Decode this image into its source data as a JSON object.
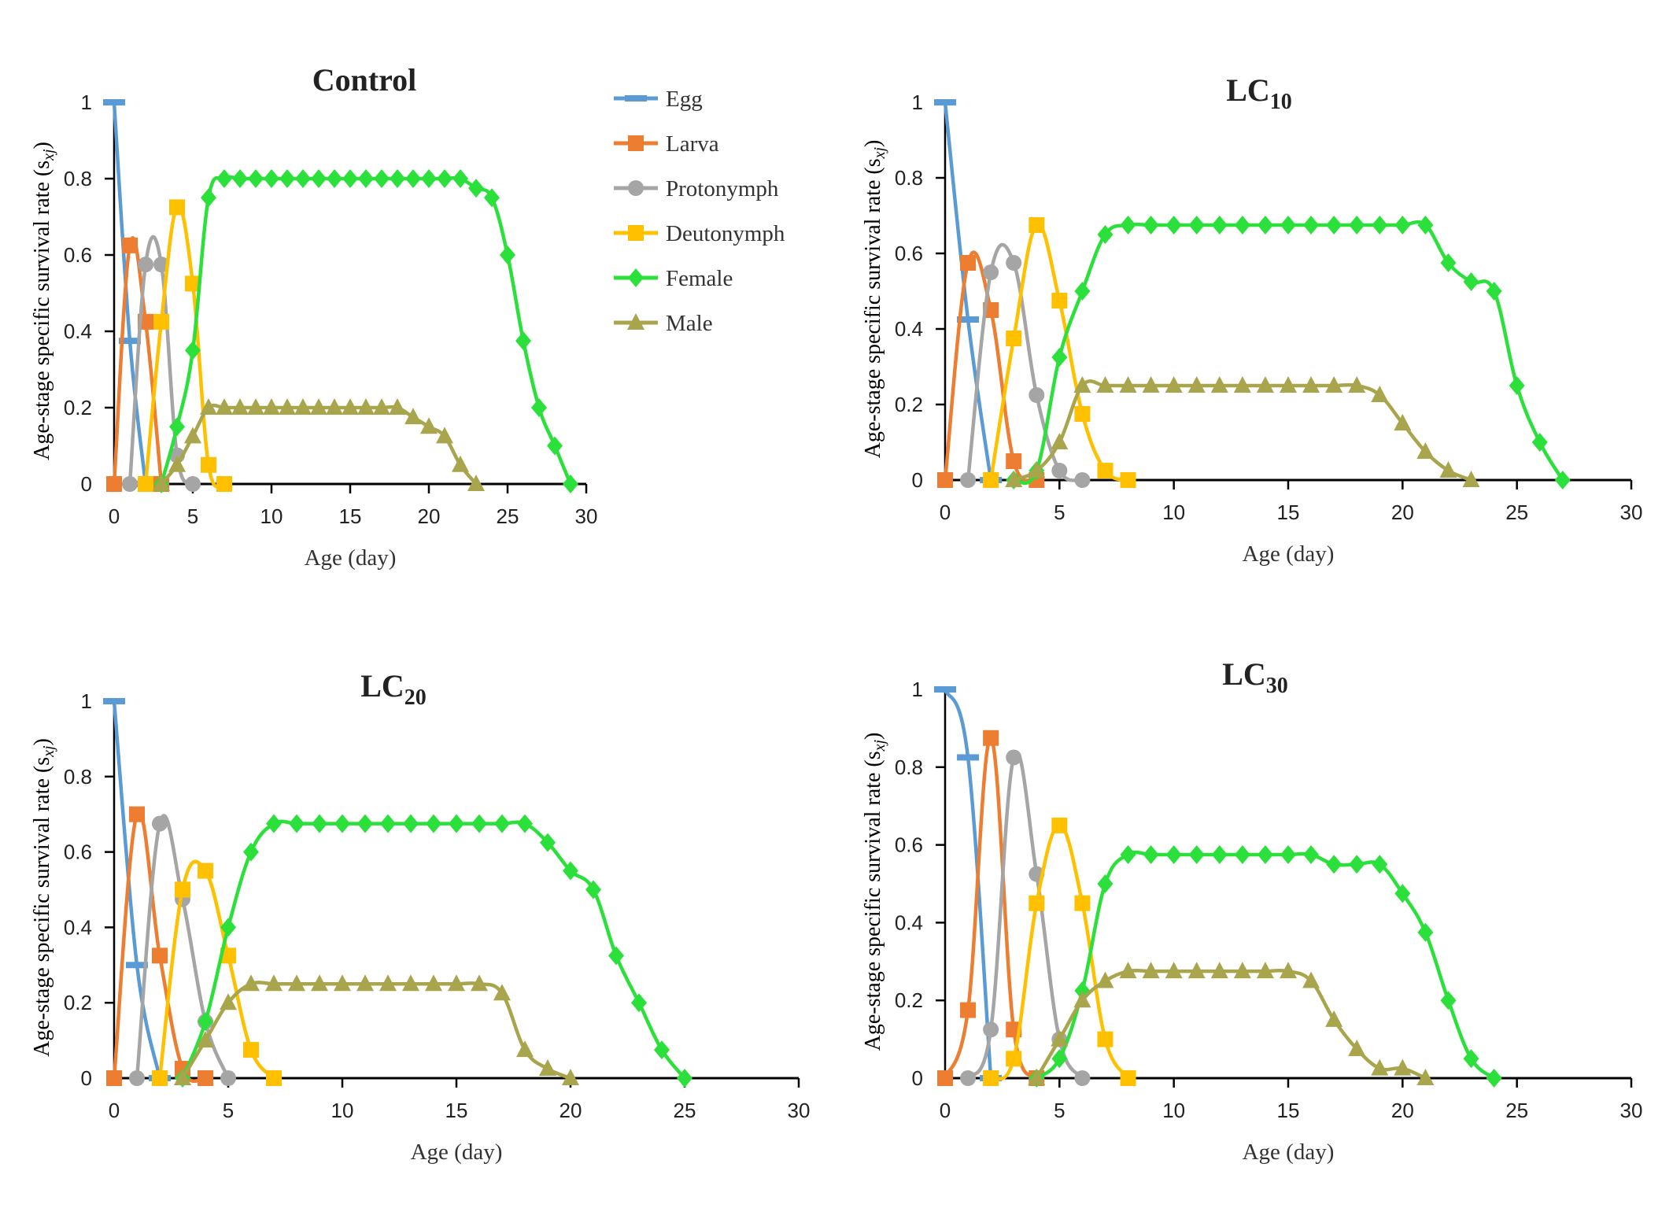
{
  "chart_data": [
    {
      "type": "line",
      "title": "Control",
      "title_sub": "",
      "xlabel": "Age (day)",
      "ylabel": "Age-stage specific survival rate (s",
      "ylabel_sub": "xj",
      "ylabel_end": ")",
      "xlim": [
        0,
        30
      ],
      "ylim": [
        0,
        1
      ],
      "xticks": [
        "0",
        "5",
        "10",
        "15",
        "20",
        "25",
        "30"
      ],
      "yticks": [
        "0",
        "0.2",
        "0.4",
        "0.6",
        "0.8",
        "1"
      ],
      "grid": false,
      "series": [
        {
          "name": "Egg",
          "x": [
            0,
            1,
            2
          ],
          "values": [
            1,
            0.375,
            0
          ]
        },
        {
          "name": "Larva",
          "x": [
            0,
            1,
            2,
            3
          ],
          "values": [
            0,
            0.625,
            0.425,
            0
          ]
        },
        {
          "name": "Protonymph",
          "x": [
            1,
            2,
            3,
            4,
            5
          ],
          "values": [
            0,
            0.575,
            0.575,
            0.075,
            0
          ]
        },
        {
          "name": "Deutonymph",
          "x": [
            2,
            3,
            4,
            5,
            6,
            7
          ],
          "values": [
            0,
            0.425,
            0.725,
            0.525,
            0.05,
            0
          ]
        },
        {
          "name": "Female",
          "x": [
            3,
            4,
            5,
            6,
            7,
            8,
            9,
            10,
            11,
            12,
            13,
            14,
            15,
            16,
            17,
            18,
            19,
            20,
            21,
            22,
            23,
            24,
            25,
            26,
            27,
            28,
            29
          ],
          "values": [
            0,
            0.15,
            0.35,
            0.75,
            0.8,
            0.8,
            0.8,
            0.8,
            0.8,
            0.8,
            0.8,
            0.8,
            0.8,
            0.8,
            0.8,
            0.8,
            0.8,
            0.8,
            0.8,
            0.8,
            0.775,
            0.75,
            0.6,
            0.375,
            0.2,
            0.1,
            0
          ]
        },
        {
          "name": "Male",
          "x": [
            3,
            4,
            5,
            6,
            7,
            8,
            9,
            10,
            11,
            12,
            13,
            14,
            15,
            16,
            17,
            18,
            19,
            20,
            21,
            22,
            23
          ],
          "values": [
            0,
            0.05,
            0.125,
            0.2,
            0.2,
            0.2,
            0.2,
            0.2,
            0.2,
            0.2,
            0.2,
            0.2,
            0.2,
            0.2,
            0.2,
            0.2,
            0.175,
            0.15,
            0.125,
            0.05,
            0
          ]
        }
      ]
    },
    {
      "type": "line",
      "title": "LC",
      "title_sub": "10",
      "xlabel": "Age (day)",
      "ylabel": "Age-stage specific survival rate (s",
      "ylabel_sub": "xj",
      "ylabel_end": ")",
      "xlim": [
        0,
        30
      ],
      "ylim": [
        0,
        1
      ],
      "xticks": [
        "0",
        "5",
        "10",
        "15",
        "20",
        "25",
        "30"
      ],
      "yticks": [
        "0",
        "0.2",
        "0.4",
        "0.6",
        "0.8",
        "1"
      ],
      "grid": false,
      "series": [
        {
          "name": "Egg",
          "x": [
            0,
            1,
            2
          ],
          "values": [
            1,
            0.425,
            0
          ]
        },
        {
          "name": "Larva",
          "x": [
            0,
            1,
            2,
            3,
            4
          ],
          "values": [
            0,
            0.575,
            0.45,
            0.05,
            0
          ]
        },
        {
          "name": "Protonymph",
          "x": [
            1,
            2,
            3,
            4,
            5,
            6
          ],
          "values": [
            0,
            0.55,
            0.575,
            0.225,
            0.025,
            0
          ]
        },
        {
          "name": "Deutonymph",
          "x": [
            2,
            3,
            4,
            5,
            6,
            7,
            8
          ],
          "values": [
            0,
            0.375,
            0.675,
            0.475,
            0.175,
            0.025,
            0
          ]
        },
        {
          "name": "Female",
          "x": [
            3,
            4,
            5,
            6,
            7,
            8,
            9,
            10,
            11,
            12,
            13,
            14,
            15,
            16,
            17,
            18,
            19,
            20,
            21,
            22,
            23,
            24,
            25,
            26,
            27
          ],
          "values": [
            0,
            0.025,
            0.325,
            0.5,
            0.65,
            0.675,
            0.675,
            0.675,
            0.675,
            0.675,
            0.675,
            0.675,
            0.675,
            0.675,
            0.675,
            0.675,
            0.675,
            0.675,
            0.675,
            0.575,
            0.525,
            0.5,
            0.25,
            0.1,
            0
          ]
        },
        {
          "name": "Male",
          "x": [
            3,
            4,
            5,
            6,
            7,
            8,
            9,
            10,
            11,
            12,
            13,
            14,
            15,
            16,
            17,
            18,
            19,
            20,
            21,
            22,
            23
          ],
          "values": [
            0,
            0.025,
            0.1,
            0.25,
            0.25,
            0.25,
            0.25,
            0.25,
            0.25,
            0.25,
            0.25,
            0.25,
            0.25,
            0.25,
            0.25,
            0.25,
            0.225,
            0.15,
            0.075,
            0.025,
            0
          ]
        }
      ]
    },
    {
      "type": "line",
      "title": "LC",
      "title_sub": "20",
      "xlabel": "Age (day)",
      "ylabel": "Age-stage specific survival rate (s",
      "ylabel_sub": "xj",
      "ylabel_end": ")",
      "xlim": [
        0,
        30
      ],
      "ylim": [
        0,
        1
      ],
      "xticks": [
        "0",
        "5",
        "10",
        "15",
        "20",
        "25",
        "30"
      ],
      "yticks": [
        "0",
        "0.2",
        "0.4",
        "0.6",
        "0.8",
        "1"
      ],
      "grid": false,
      "series": [
        {
          "name": "Egg",
          "x": [
            0,
            1,
            2
          ],
          "values": [
            1,
            0.3,
            0
          ]
        },
        {
          "name": "Larva",
          "x": [
            0,
            1,
            2,
            3,
            4
          ],
          "values": [
            0,
            0.7,
            0.325,
            0.025,
            0
          ]
        },
        {
          "name": "Protonymph",
          "x": [
            1,
            2,
            3,
            4,
            5
          ],
          "values": [
            0,
            0.675,
            0.475,
            0.15,
            0
          ]
        },
        {
          "name": "Deutonymph",
          "x": [
            2,
            3,
            4,
            5,
            6,
            7
          ],
          "values": [
            0,
            0.5,
            0.55,
            0.325,
            0.075,
            0
          ]
        },
        {
          "name": "Female",
          "x": [
            3,
            4,
            5,
            6,
            7,
            8,
            9,
            10,
            11,
            12,
            13,
            14,
            15,
            16,
            17,
            18,
            19,
            20,
            21,
            22,
            23,
            24,
            25
          ],
          "values": [
            0,
            0.15,
            0.4,
            0.6,
            0.675,
            0.675,
            0.675,
            0.675,
            0.675,
            0.675,
            0.675,
            0.675,
            0.675,
            0.675,
            0.675,
            0.675,
            0.625,
            0.55,
            0.5,
            0.325,
            0.2,
            0.075,
            0
          ]
        },
        {
          "name": "Male",
          "x": [
            3,
            4,
            5,
            6,
            7,
            8,
            9,
            10,
            11,
            12,
            13,
            14,
            15,
            16,
            17,
            18,
            19,
            20
          ],
          "values": [
            0,
            0.1,
            0.2,
            0.25,
            0.25,
            0.25,
            0.25,
            0.25,
            0.25,
            0.25,
            0.25,
            0.25,
            0.25,
            0.25,
            0.225,
            0.075,
            0.025,
            0
          ]
        }
      ]
    },
    {
      "type": "line",
      "title": "LC",
      "title_sub": "30",
      "xlabel": "Age (day)",
      "ylabel": "Age-stage specific survival rate (s",
      "ylabel_sub": "xj",
      "ylabel_end": ")",
      "xlim": [
        0,
        30
      ],
      "ylim": [
        0,
        1
      ],
      "xticks": [
        "0",
        "5",
        "10",
        "15",
        "20",
        "25",
        "30"
      ],
      "yticks": [
        "0",
        "0.2",
        "0.4",
        "0.6",
        "0.8",
        "1"
      ],
      "grid": false,
      "series": [
        {
          "name": "Egg",
          "x": [
            0,
            1,
            2
          ],
          "values": [
            1,
            0.825,
            0
          ]
        },
        {
          "name": "Larva",
          "x": [
            0,
            1,
            2,
            3,
            4
          ],
          "values": [
            0,
            0.175,
            0.875,
            0.125,
            0
          ]
        },
        {
          "name": "Protonymph",
          "x": [
            1,
            2,
            3,
            4,
            5,
            6
          ],
          "values": [
            0,
            0.125,
            0.825,
            0.525,
            0.1,
            0
          ]
        },
        {
          "name": "Deutonymph",
          "x": [
            2,
            3,
            4,
            5,
            6,
            7,
            8
          ],
          "values": [
            0,
            0.05,
            0.45,
            0.65,
            0.45,
            0.1,
            0
          ]
        },
        {
          "name": "Female",
          "x": [
            4,
            5,
            6,
            7,
            8,
            9,
            10,
            11,
            12,
            13,
            14,
            15,
            16,
            17,
            18,
            19,
            20,
            21,
            22,
            23,
            24
          ],
          "values": [
            0,
            0.05,
            0.225,
            0.5,
            0.575,
            0.575,
            0.575,
            0.575,
            0.575,
            0.575,
            0.575,
            0.575,
            0.575,
            0.55,
            0.55,
            0.55,
            0.475,
            0.375,
            0.2,
            0.05,
            0
          ]
        },
        {
          "name": "Male",
          "x": [
            4,
            5,
            6,
            7,
            8,
            9,
            10,
            11,
            12,
            13,
            14,
            15,
            16,
            17,
            18,
            19,
            20,
            21
          ],
          "values": [
            0,
            0.1,
            0.2,
            0.25,
            0.275,
            0.275,
            0.275,
            0.275,
            0.275,
            0.275,
            0.275,
            0.275,
            0.25,
            0.15,
            0.075,
            0.025,
            0.025,
            0
          ]
        }
      ]
    }
  ],
  "legend": {
    "placement": "right of Control panel",
    "items": [
      {
        "name": "Egg",
        "marker": "dash",
        "color": "#5B9BD5"
      },
      {
        "name": "Larva",
        "marker": "square",
        "color": "#ED7D31"
      },
      {
        "name": "Protonymph",
        "marker": "circle",
        "color": "#A5A5A5"
      },
      {
        "name": "Deutonymph",
        "marker": "square",
        "color": "#FFC000"
      },
      {
        "name": "Female",
        "marker": "diamond",
        "color": "#2BE03A"
      },
      {
        "name": "Male",
        "marker": "triangle",
        "color": "#A9A54D"
      }
    ]
  }
}
